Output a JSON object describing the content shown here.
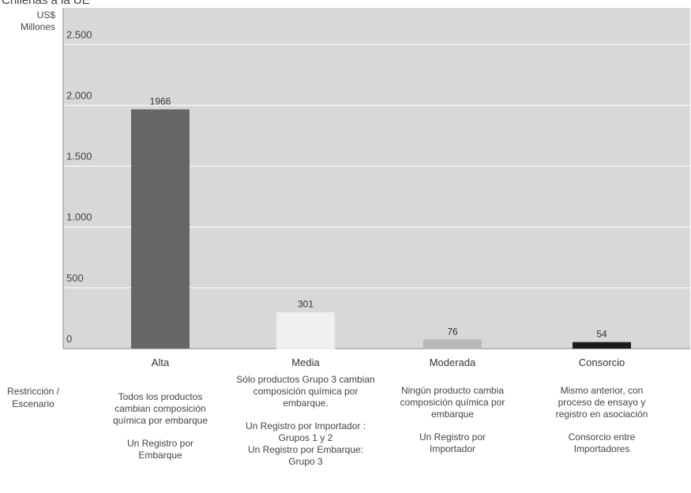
{
  "header": {
    "title": "Chilenas a la UE"
  },
  "chart_data": {
    "type": "bar",
    "title": "Chilenas a la UE",
    "ylabel": "US$ Millones",
    "xlabel": "",
    "ylim": [
      0,
      2800
    ],
    "grid": true,
    "yticks": [
      0,
      500,
      1000,
      1500,
      2000,
      2500
    ],
    "ytick_labels": [
      "0",
      "500",
      "1.000",
      "1.500",
      "2.000",
      "2.500"
    ],
    "categories": [
      "Alta",
      "Media",
      "Moderada",
      "Consorcio"
    ],
    "values": [
      1966,
      301,
      76,
      54
    ],
    "value_labels": [
      "1966",
      "301",
      "76",
      "54"
    ],
    "colors": [
      "#666666",
      "#f0f0f0",
      "#b8b8b8",
      "#1e1a1a"
    ],
    "plot_background": "#d8d8d8",
    "grid_color": "#ffffff"
  },
  "table": {
    "row_header": [
      "Restricción /",
      "Escenario"
    ],
    "columns": [
      {
        "restriccion": [
          "Todos los productos",
          "cambian composición",
          "química por embarque"
        ],
        "registro": [
          "Un Registro por",
          "Embarque"
        ]
      },
      {
        "restriccion": [
          "Sólo productos Grupo 3 cambian",
          "composición química por",
          "embarque."
        ],
        "registro": [
          "Un Registro por Importador :",
          "Grupos 1 y 2",
          "Un Registro por Embarque:",
          "Grupo 3"
        ]
      },
      {
        "restriccion": [
          "Ningún producto cambia",
          "composición química por",
          "embarque"
        ],
        "registro": [
          "Un Registro por",
          "Importador"
        ]
      },
      {
        "restriccion": [
          "Mismo anterior, con",
          "proceso de ensayo y",
          "registro en asociación"
        ],
        "registro": [
          "Consorcio entre",
          "Importadores"
        ]
      }
    ]
  }
}
